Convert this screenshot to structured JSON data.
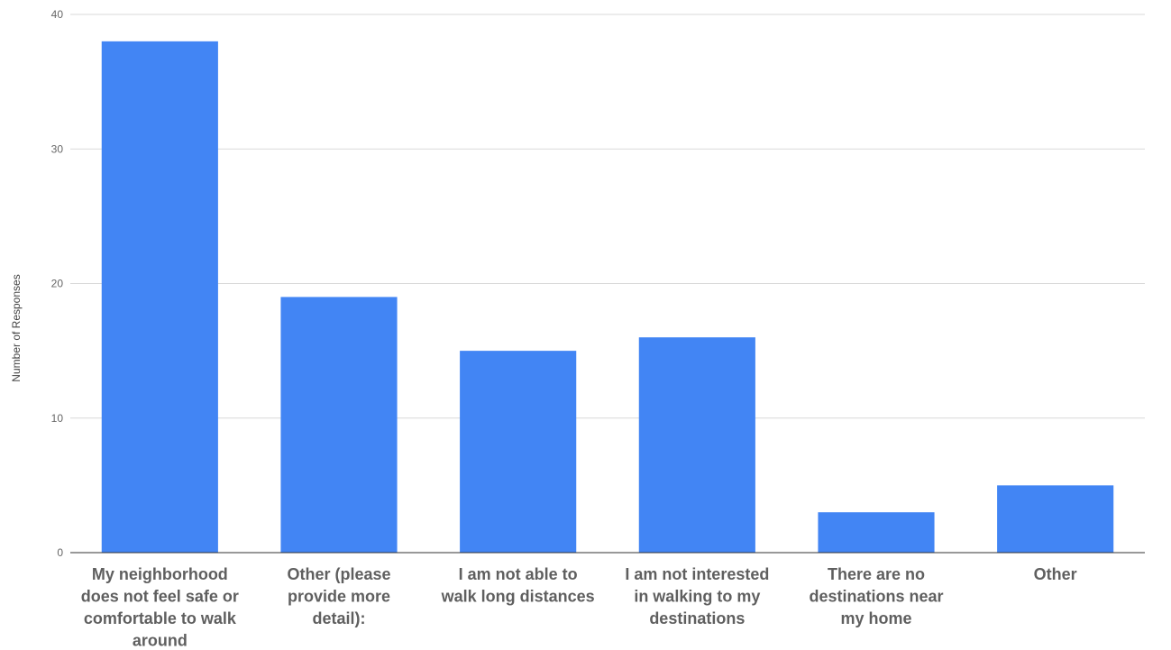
{
  "chart_data": {
    "type": "bar",
    "title": "",
    "xlabel": "",
    "ylabel": "Number of Responses",
    "ylim": [
      0,
      40
    ],
    "yticks": [
      0,
      10,
      20,
      30,
      40
    ],
    "grid": true,
    "legend": "none",
    "bar_color": "#4285f4",
    "categories": [
      [
        "My neighborhood",
        "does not feel safe or",
        "comfortable to walk",
        "around"
      ],
      [
        "Other (please",
        "provide more",
        "detail):"
      ],
      [
        "I am not able to",
        "walk long distances"
      ],
      [
        "I am not interested",
        "in walking to my",
        "destinations"
      ],
      [
        "There are no",
        "destinations near",
        "my home"
      ],
      [
        "Other"
      ]
    ],
    "values": [
      38,
      19,
      15,
      16,
      3,
      5
    ]
  }
}
